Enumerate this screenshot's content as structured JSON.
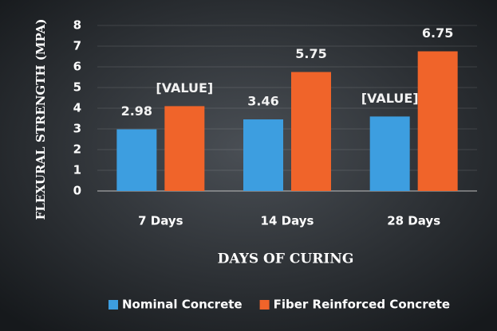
{
  "chart_data": {
    "type": "bar",
    "categories": [
      "7 Days",
      "14 Days",
      "28 Days"
    ],
    "series": [
      {
        "name": "Nominal Concrete",
        "color": "#3d9ee0",
        "values": [
          2.98,
          3.46,
          3.6
        ],
        "value_labels": [
          "2.98",
          "3.46",
          "[VALUE]"
        ]
      },
      {
        "name": "Fiber Reinforced Concrete",
        "color": "#f0642a",
        "values": [
          4.1,
          5.75,
          6.75
        ],
        "value_labels": [
          "[VALUE]",
          "5.75",
          "6.75"
        ]
      }
    ],
    "x_label": "DAYS OF CURING",
    "y_label": "FLEXURAL STRENGTH (MPA)",
    "ylim": [
      0,
      8
    ],
    "yticks": [
      0,
      1,
      2,
      3,
      4,
      5,
      6,
      7,
      8
    ],
    "grid": true,
    "legend": "bottom"
  }
}
